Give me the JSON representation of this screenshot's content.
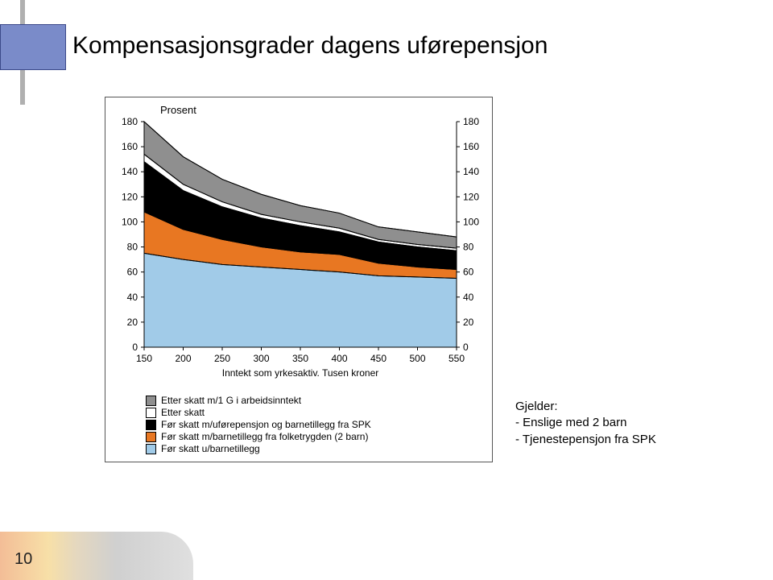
{
  "title": "Kompensasjonsgrader dagens uførepensjon",
  "page_number": "10",
  "side_note": {
    "heading": "Gjelder:",
    "lines": [
      "- Enslige med 2 barn",
      "- Tjenestepensjon fra SPK"
    ]
  },
  "chart": {
    "type": "area",
    "y_axis_title": "Prosent",
    "x_axis_title": "Inntekt som yrkesaktiv. Tusen kroner",
    "xlim": [
      150,
      550
    ],
    "ylim": [
      0,
      180
    ],
    "ytick_step": 20,
    "xtick_step": 50,
    "background_color": "#ffffff",
    "axis_color": "#000000",
    "tick_fontsize": 12,
    "label_fontsize": 12,
    "stroke_width": 1,
    "xticks": [
      150,
      200,
      250,
      300,
      350,
      400,
      450,
      500,
      550
    ],
    "yticks": [
      0,
      20,
      40,
      60,
      80,
      100,
      120,
      140,
      160,
      180
    ],
    "series_x": [
      150,
      200,
      250,
      300,
      350,
      400,
      450,
      500,
      550
    ],
    "series": [
      {
        "name": "Før skatt u/barnetillegg",
        "color": "#a1cbe8",
        "values": [
          75,
          70,
          66,
          64,
          62,
          60,
          57,
          56,
          55
        ]
      },
      {
        "name": "Før skatt m/barnetillegg fra folketrygden (2 barn)",
        "color": "#e87722",
        "values": [
          108,
          94,
          86,
          80,
          76,
          74,
          67,
          64,
          62
        ]
      },
      {
        "name": "Før skatt m/uførepensjon og barnetillegg fra SPK",
        "color": "#000000",
        "values": [
          148,
          125,
          112,
          103,
          97,
          92,
          84,
          80,
          77
        ]
      },
      {
        "name": "Etter skatt",
        "color": "#ffffff",
        "values": [
          154,
          130,
          116,
          106,
          100,
          95,
          86,
          82,
          79
        ]
      },
      {
        "name": "Etter skatt m/1 G i arbeidsinntekt",
        "color": "#8f8f8f",
        "values": [
          180,
          152,
          134,
          122,
          113,
          107,
          96,
          92,
          88
        ]
      }
    ],
    "legend_order": [
      "Etter skatt m/1 G i arbeidsinntekt",
      "Etter skatt",
      "Før skatt m/uførepensjon og barnetillegg fra SPK",
      "Før skatt m/barnetillegg fra folketrygden (2 barn)",
      "Før skatt u/barnetillegg"
    ]
  }
}
